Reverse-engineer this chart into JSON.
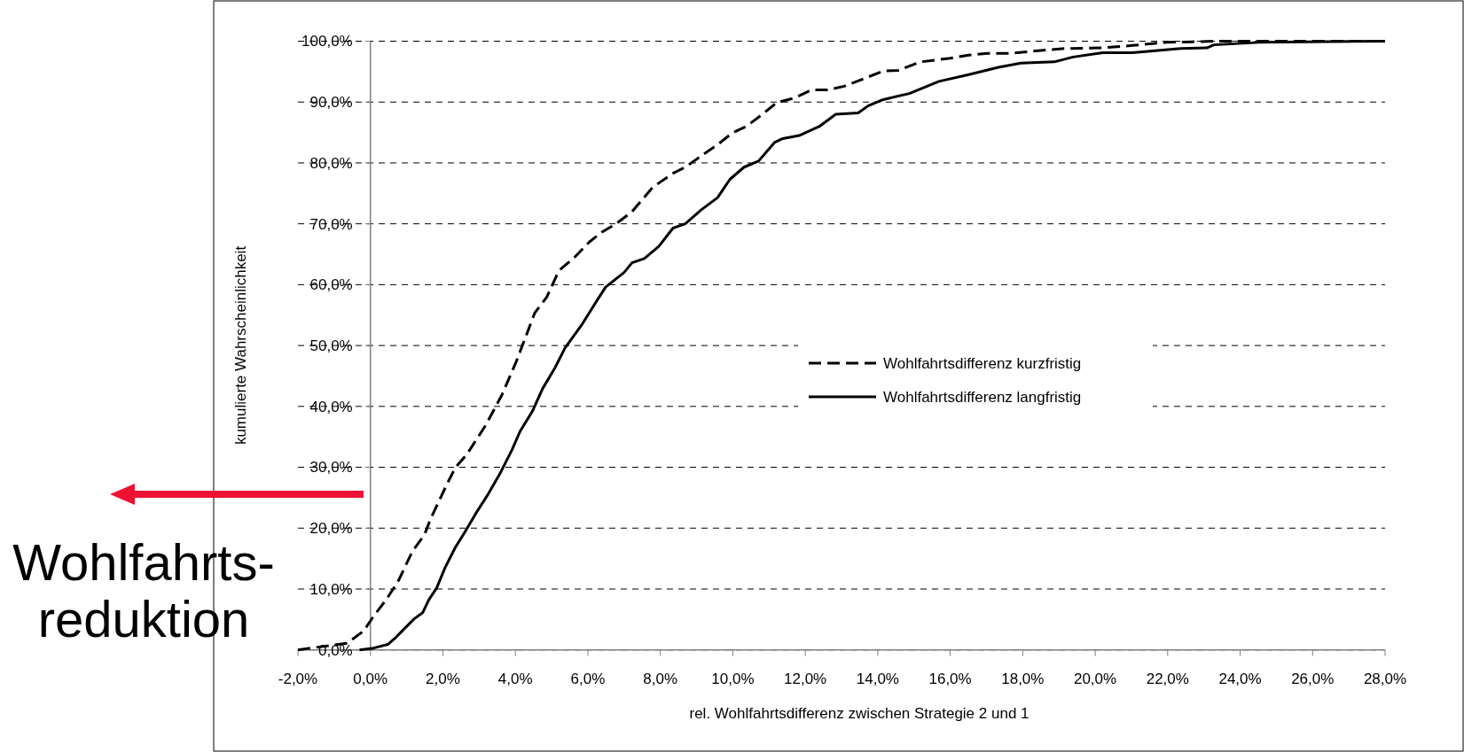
{
  "chart_data": {
    "type": "line",
    "xlabel": "rel. Wohlfahrtsdifferenz zwischen Strategie 2 und 1",
    "ylabel": "kumulierte Wahrscheinlichkeit",
    "annotations": [
      "Wohlfahrts-\nreduktion"
    ],
    "xlim": [
      -2,
      28
    ],
    "ylim": [
      0,
      100
    ],
    "xticks": [
      {
        "value": -2,
        "label": "-2,0%"
      },
      {
        "value": 0,
        "label": "0,0%"
      },
      {
        "value": 2,
        "label": "2,0%"
      },
      {
        "value": 4,
        "label": "4,0%"
      },
      {
        "value": 6,
        "label": "6,0%"
      },
      {
        "value": 8,
        "label": "8,0%"
      },
      {
        "value": 10,
        "label": "10,0%"
      },
      {
        "value": 12,
        "label": "12,0%"
      },
      {
        "value": 14,
        "label": "14,0%"
      },
      {
        "value": 16,
        "label": "16,0%"
      },
      {
        "value": 18,
        "label": "18,0%"
      },
      {
        "value": 20,
        "label": "20,0%"
      },
      {
        "value": 22,
        "label": "22,0%"
      },
      {
        "value": 24,
        "label": "24,0%"
      },
      {
        "value": 26,
        "label": "26,0%"
      },
      {
        "value": 28,
        "label": "28,0%"
      }
    ],
    "yticks": [
      {
        "value": 0,
        "label": "0,0%"
      },
      {
        "value": 10,
        "label": "10,0%"
      },
      {
        "value": 20,
        "label": "20,0%"
      },
      {
        "value": 30,
        "label": "30,0%"
      },
      {
        "value": 40,
        "label": "40,0%"
      },
      {
        "value": 50,
        "label": "50,0%"
      },
      {
        "value": 60,
        "label": "60,0%"
      },
      {
        "value": 70,
        "label": "70,0%"
      },
      {
        "value": 80,
        "label": "80,0%"
      },
      {
        "value": 90,
        "label": "90,0%"
      },
      {
        "value": 100,
        "label": "100,0%"
      }
    ],
    "grid": "y",
    "legend": "center",
    "series": [
      {
        "name": "Wohlfahrtsdifferenz kurzfristig",
        "color": "#000000",
        "line_style": "dashed",
        "x": [
          -2,
          -0.64,
          -0.19,
          0.12,
          0.43,
          0.76,
          1.16,
          1.49,
          1.66,
          2.11,
          2.34,
          2.67,
          3.18,
          3.63,
          4.02,
          4.36,
          4.53,
          4.87,
          5.2,
          5.65,
          6.04,
          6.38,
          6.78,
          7.22,
          7.79,
          8.35,
          8.69,
          9.19,
          9.58,
          9.98,
          10.37,
          10.82,
          11.21,
          11.72,
          12.17,
          12.62,
          13.07,
          13.64,
          14.15,
          14.56,
          15.18,
          16.0,
          16.51,
          17.03,
          17.64,
          18.36,
          19.18,
          20.21,
          21.03,
          21.95,
          22.67,
          23.29,
          28
        ],
        "values": [
          0,
          1.1,
          3.1,
          5.8,
          8.2,
          11.2,
          16.2,
          18.9,
          21.5,
          27.2,
          29.9,
          32.2,
          36.9,
          41.9,
          47.3,
          52.6,
          55.3,
          58,
          62.3,
          64.6,
          67,
          68.6,
          70,
          72,
          76,
          78.3,
          79.3,
          81.4,
          83,
          84.9,
          86,
          88,
          89.9,
          90.7,
          92,
          92,
          92.6,
          93.9,
          95.1,
          95.2,
          96.6,
          97.2,
          97.7,
          98,
          98,
          98.4,
          98.8,
          98.9,
          99.3,
          99.8,
          99.9,
          100,
          100
        ]
      },
      {
        "name": "Wohlfahrtsdifferenz langfristig",
        "color": "#000000",
        "line_style": "solid",
        "x": [
          -0.3,
          0.09,
          0.48,
          0.71,
          0.99,
          1.21,
          1.44,
          1.61,
          1.83,
          2.06,
          2.34,
          2.62,
          2.96,
          3.24,
          3.57,
          3.91,
          4.13,
          4.47,
          4.75,
          5.09,
          5.37,
          5.82,
          6.21,
          6.49,
          7.0,
          7.22,
          7.56,
          7.96,
          8.35,
          8.69,
          9.13,
          9.58,
          9.92,
          10.31,
          10.71,
          11.16,
          11.38,
          11.83,
          12.39,
          12.84,
          13.46,
          13.74,
          14.15,
          14.87,
          15.69,
          16.51,
          17.33,
          17.95,
          18.87,
          19.39,
          20.21,
          21.03,
          22.36,
          23.08,
          23.28,
          24.52,
          28
        ],
        "values": [
          0,
          0.3,
          0.9,
          2.1,
          3.8,
          5.1,
          6.1,
          8.2,
          10.2,
          13.5,
          16.8,
          19.5,
          22.9,
          25.5,
          28.9,
          32.9,
          35.9,
          39.2,
          42.9,
          46.3,
          49.6,
          53.3,
          57,
          59.6,
          62,
          63.6,
          64.3,
          66.3,
          69.3,
          70,
          72.3,
          74.3,
          77.3,
          79.3,
          80.3,
          83.4,
          84,
          84.5,
          86,
          88,
          88.2,
          89.4,
          90.4,
          91.4,
          93.4,
          94.5,
          95.7,
          96.4,
          96.6,
          97.4,
          98.1,
          98.1,
          98.8,
          98.9,
          99.4,
          99.8,
          100
        ]
      }
    ]
  }
}
